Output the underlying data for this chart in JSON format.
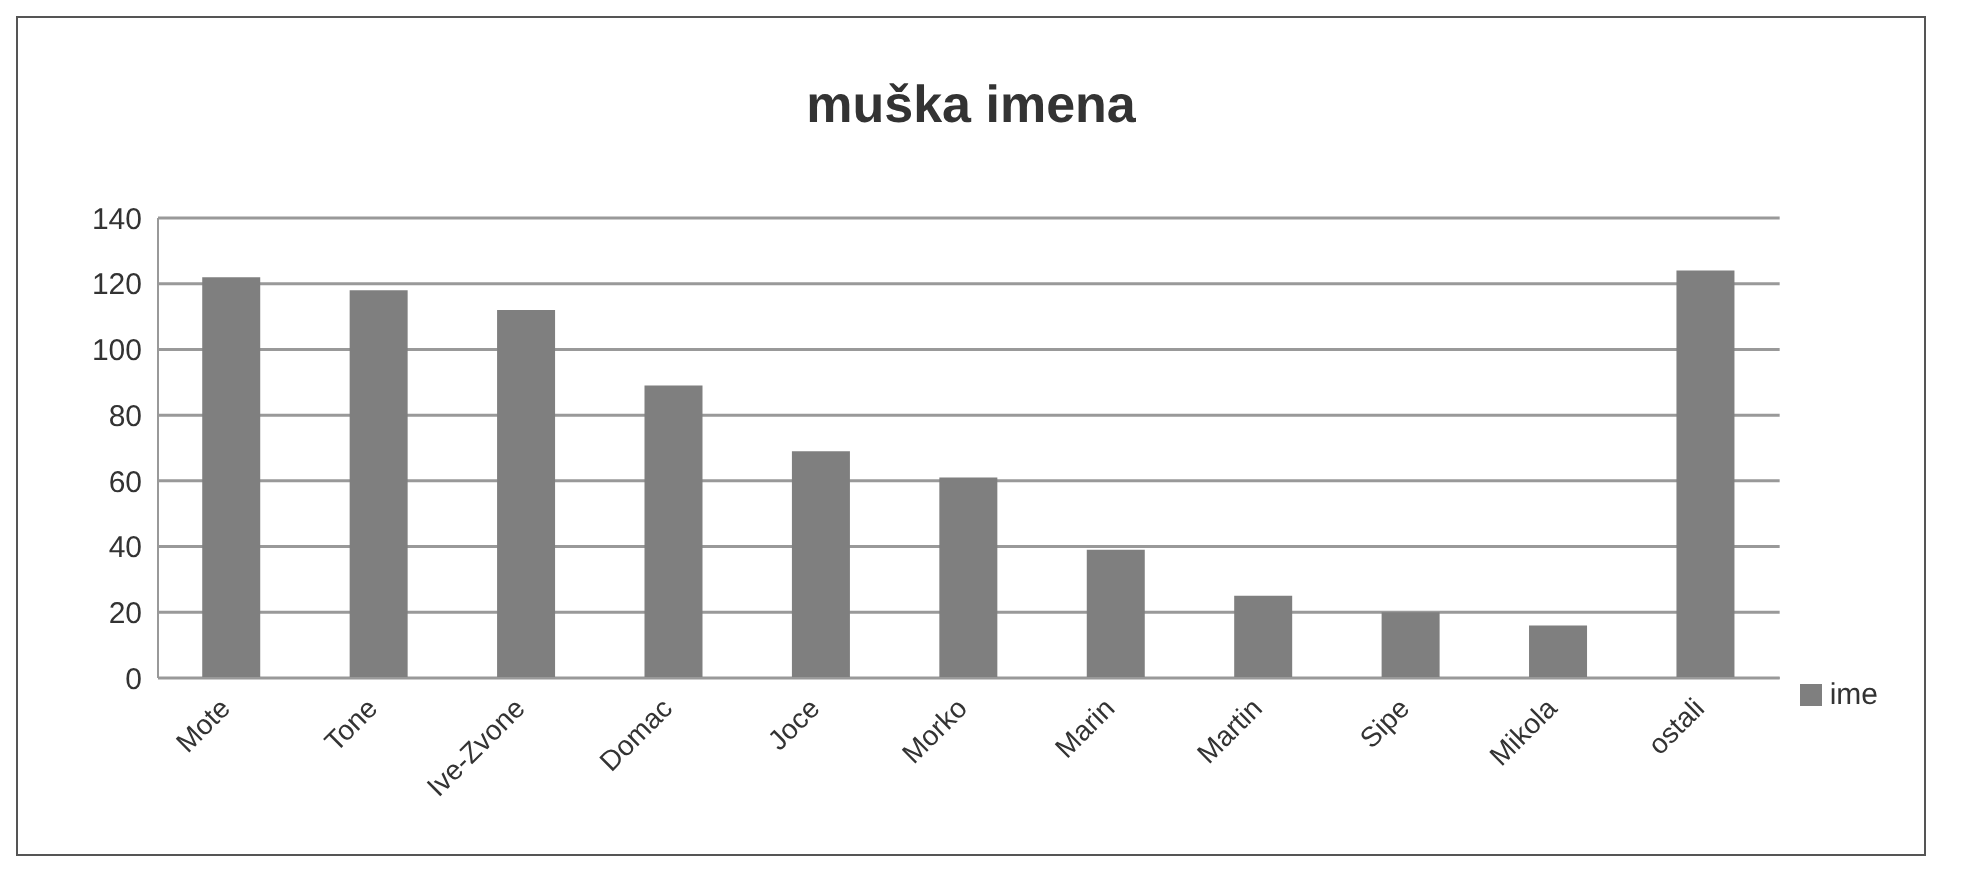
{
  "chart_data": {
    "type": "bar",
    "title": "muška imena",
    "categories": [
      "Mote",
      "Tone",
      "Ive-Zvone",
      "Domac",
      "Joce",
      "Morko",
      "Marin",
      "Martin",
      "Sipe",
      "Mikola",
      "ostali"
    ],
    "series": [
      {
        "name": "ime",
        "color": "#7f7f7f",
        "values": [
          122,
          118,
          112,
          89,
          69,
          61,
          39,
          25,
          20,
          16,
          124
        ]
      }
    ],
    "ylim": [
      0,
      140
    ],
    "yticks": [
      0,
      20,
      40,
      60,
      80,
      100,
      120,
      140
    ],
    "grid": "y",
    "legend": "right"
  }
}
